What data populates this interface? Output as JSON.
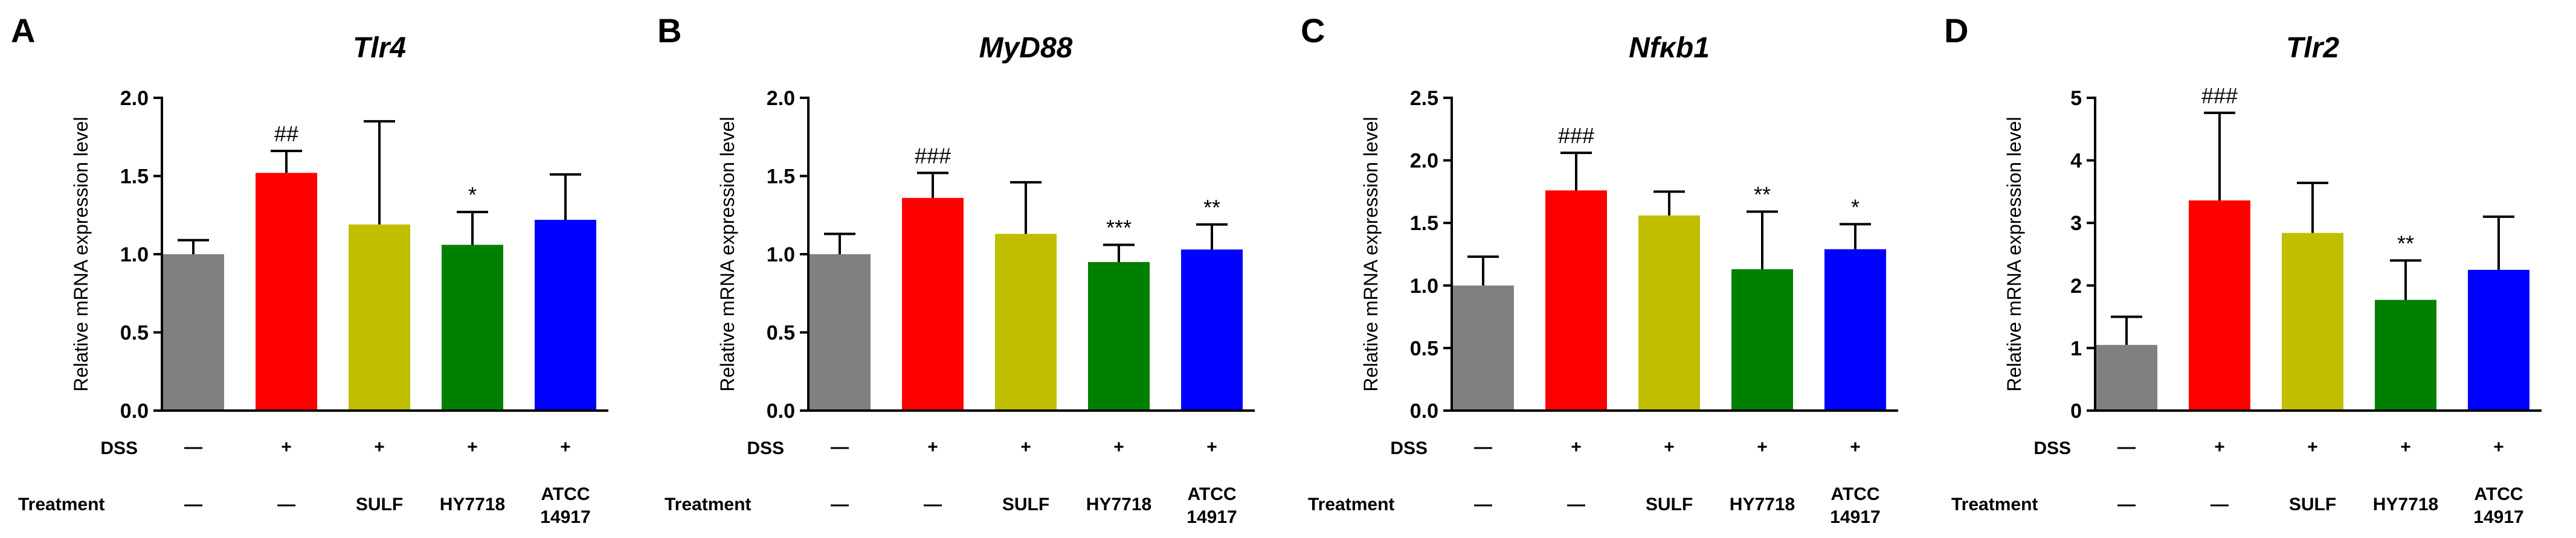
{
  "chart_data": [
    {
      "type": "bar",
      "panel": "A",
      "title": "Tlr4",
      "ylabel": "Relative mRNA expression level",
      "ylim": [
        0,
        2.0
      ],
      "yticks": [
        0.0,
        0.5,
        1.0,
        1.5,
        2.0
      ],
      "ytick_labels": [
        "0.0",
        "0.5",
        "1.0",
        "1.5",
        "2.0"
      ],
      "values": [
        1.0,
        1.52,
        1.19,
        1.06,
        1.22
      ],
      "errors": [
        0.09,
        0.14,
        0.66,
        0.21,
        0.29
      ],
      "significance": [
        "",
        "##",
        "",
        "*",
        ""
      ]
    },
    {
      "type": "bar",
      "panel": "B",
      "title": "MyD88",
      "ylabel": "Relative mRNA expression level",
      "ylim": [
        0,
        2.0
      ],
      "yticks": [
        0.0,
        0.5,
        1.0,
        1.5,
        2.0
      ],
      "ytick_labels": [
        "0.0",
        "0.5",
        "1.0",
        "1.5",
        "2.0"
      ],
      "values": [
        1.0,
        1.36,
        1.13,
        0.95,
        1.03
      ],
      "errors": [
        0.13,
        0.16,
        0.33,
        0.11,
        0.16
      ],
      "significance": [
        "",
        "###",
        "",
        "***",
        "**"
      ]
    },
    {
      "type": "bar",
      "panel": "C",
      "title": "Nfκb1",
      "ylabel": "Relative mRNA expression level",
      "ylim": [
        0,
        2.5
      ],
      "yticks": [
        0.0,
        0.5,
        1.0,
        1.5,
        2.0,
        2.5
      ],
      "ytick_labels": [
        "0.0",
        "0.5",
        "1.0",
        "1.5",
        "2.0",
        "2.5"
      ],
      "values": [
        1.0,
        1.76,
        1.56,
        1.13,
        1.29
      ],
      "errors": [
        0.23,
        0.3,
        0.19,
        0.46,
        0.2
      ],
      "significance": [
        "",
        "###",
        "",
        "**",
        "*"
      ]
    },
    {
      "type": "bar",
      "panel": "D",
      "title": "Tlr2",
      "ylabel": "Relative mRNA expression level",
      "ylim": [
        0,
        5
      ],
      "yticks": [
        0,
        1,
        2,
        3,
        4,
        5
      ],
      "ytick_labels": [
        "0",
        "1",
        "2",
        "3",
        "4",
        "5"
      ],
      "values": [
        1.05,
        3.36,
        2.84,
        1.77,
        2.25
      ],
      "errors": [
        0.45,
        1.4,
        0.8,
        0.63,
        0.85
      ],
      "significance": [
        "",
        "###",
        "",
        "**",
        ""
      ]
    }
  ],
  "groups": {
    "colors": [
      "#808080",
      "#ff0000",
      "#bfbf00",
      "#008000",
      "#0000ff"
    ],
    "dss_label": "DSS",
    "dss": [
      "—",
      "+",
      "+",
      "+",
      "+"
    ],
    "treatment_label": "Treatment",
    "treatment": [
      [
        "—"
      ],
      [
        "—"
      ],
      [
        "SULF"
      ],
      [
        "HY7718"
      ],
      [
        "ATCC",
        "14917"
      ]
    ]
  }
}
